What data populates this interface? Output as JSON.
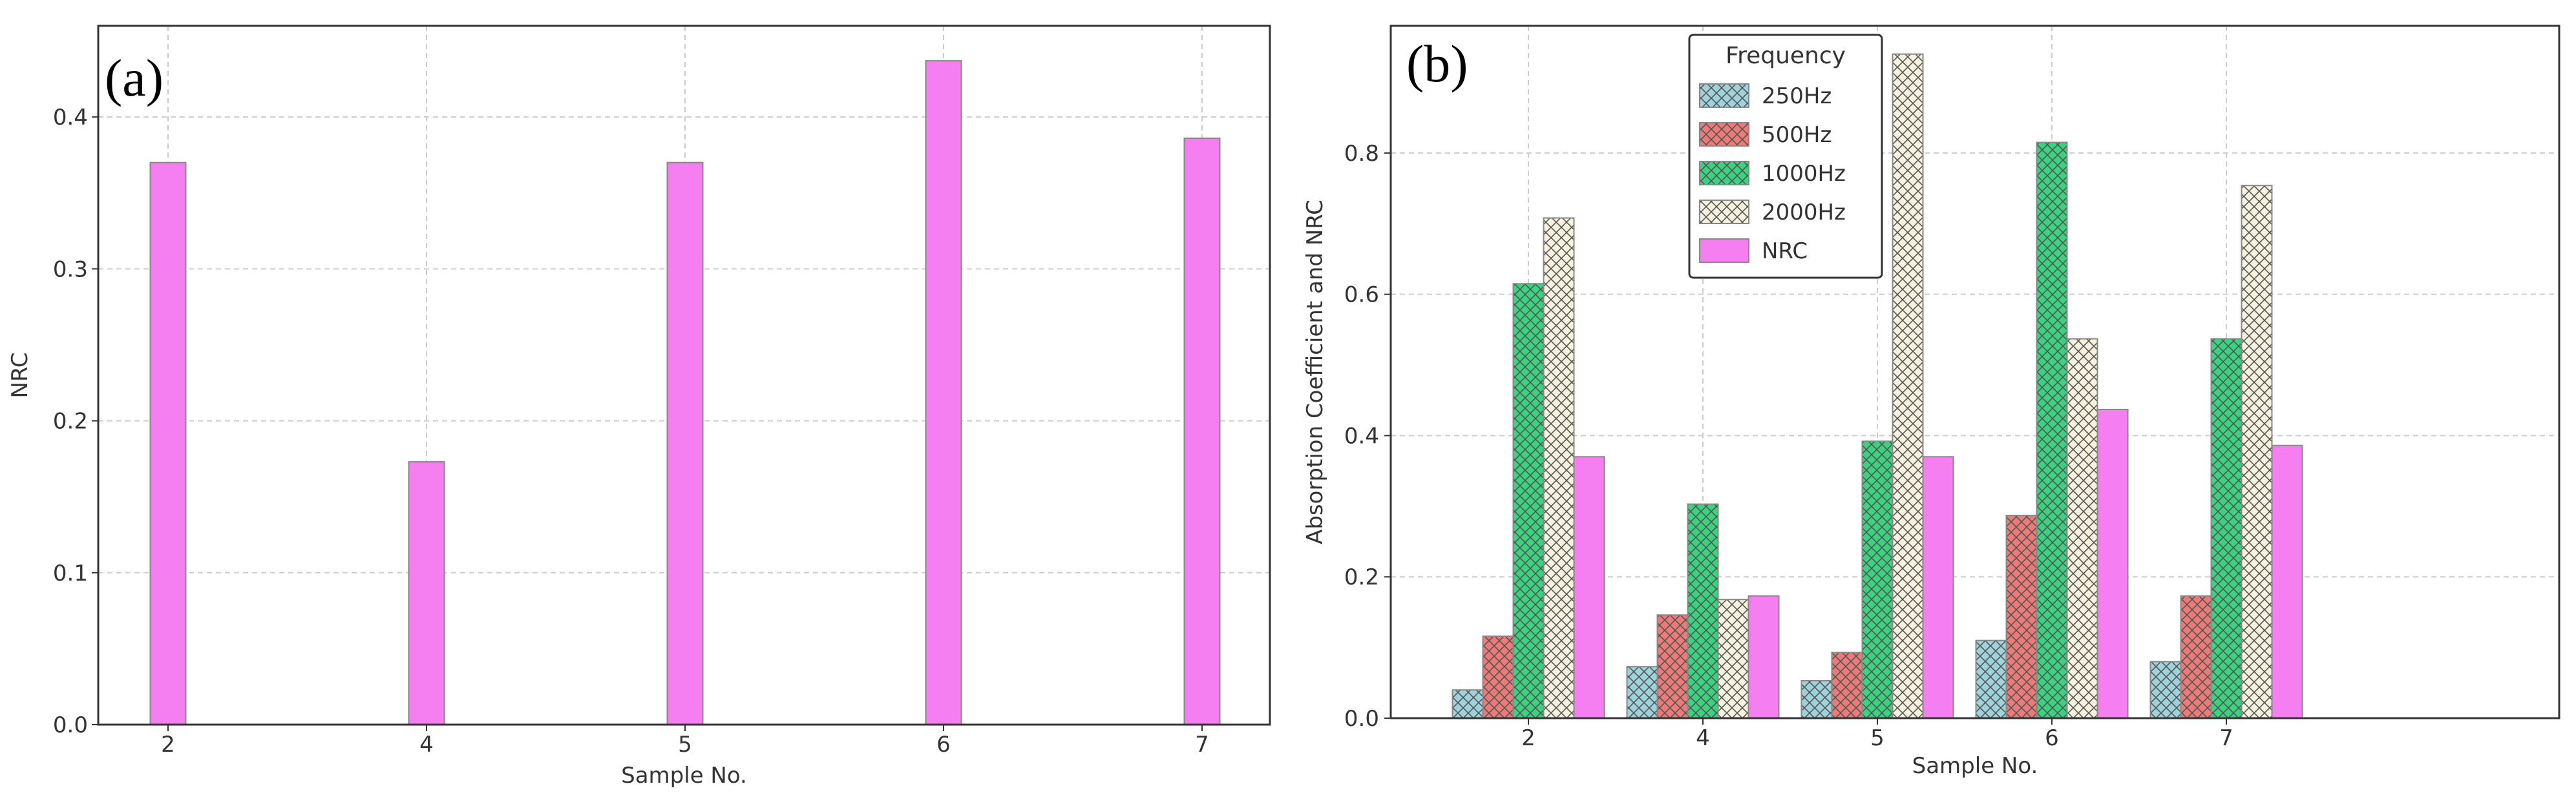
{
  "figure": {
    "background": "#ffffff"
  },
  "colors": {
    "250Hz": "#9ed3dc",
    "500Hz": "#ec7a78",
    "1000Hz": "#39d27f",
    "2000Hz": "#f6f2de",
    "NRC": "#f57ef0",
    "frame": "#333333",
    "grid": "#cccccc",
    "edge": "#888888"
  },
  "chart_data": [
    {
      "type": "bar",
      "panel_label": "(a)",
      "title": "",
      "xlabel": "Sample No.",
      "ylabel": "NRC",
      "categories": [
        "2",
        "4",
        "5",
        "6",
        "7"
      ],
      "series": [
        {
          "name": "NRC",
          "values": [
            0.37,
            0.173,
            0.37,
            0.437,
            0.386
          ],
          "pattern": "none"
        }
      ],
      "ylim": [
        0,
        0.46
      ],
      "yticks": [
        0.0,
        0.1,
        0.2,
        0.3,
        0.4
      ],
      "ytick_labels": [
        "0.0",
        "0.1",
        "0.2",
        "0.3",
        "0.4"
      ],
      "grid": true,
      "legend": null
    },
    {
      "type": "bar",
      "panel_label": "(b)",
      "title": "",
      "xlabel": "Sample No.",
      "ylabel": "Absorption Coefficient and NRC",
      "categories": [
        "2",
        "4",
        "5",
        "6",
        "7"
      ],
      "series": [
        {
          "name": "250Hz",
          "values": [
            0.04,
            0.073,
            0.053,
            0.11,
            0.08
          ],
          "pattern": "cross"
        },
        {
          "name": "500Hz",
          "values": [
            0.116,
            0.146,
            0.093,
            0.287,
            0.173
          ],
          "pattern": "cross"
        },
        {
          "name": "1000Hz",
          "values": [
            0.615,
            0.303,
            0.392,
            0.815,
            0.537
          ],
          "pattern": "cross"
        },
        {
          "name": "2000Hz",
          "values": [
            0.708,
            0.168,
            0.94,
            0.537,
            0.754
          ],
          "pattern": "cross"
        },
        {
          "name": "NRC",
          "values": [
            0.37,
            0.173,
            0.37,
            0.437,
            0.386
          ],
          "pattern": "none"
        }
      ],
      "ylim": [
        0,
        0.98
      ],
      "yticks": [
        0.0,
        0.2,
        0.4,
        0.6,
        0.8
      ],
      "ytick_labels": [
        "0.0",
        "0.2",
        "0.4",
        "0.6",
        "0.8"
      ],
      "grid": true,
      "legend": {
        "title": "Frequency",
        "placement": "top-left-inside"
      }
    }
  ]
}
